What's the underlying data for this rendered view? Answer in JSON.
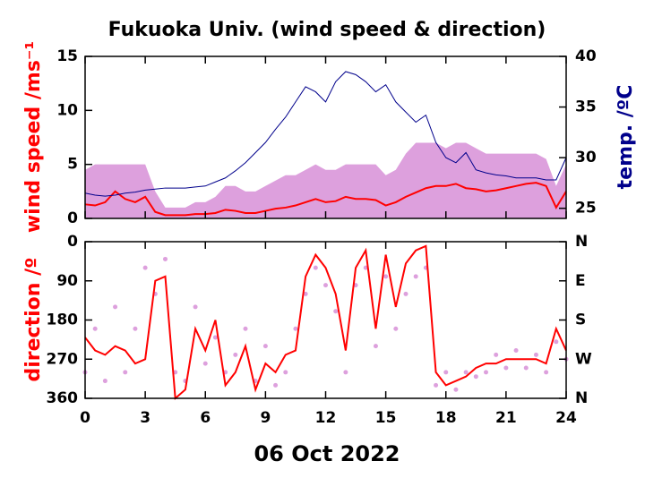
{
  "chart_data": [
    {
      "type": "line",
      "title": "Fukuoka Univ. (wind speed & direction)",
      "ylabel": "wind speed /ms⁻¹",
      "y2label": "temp. /ºC",
      "xlim": [
        0,
        24
      ],
      "xticks": [
        0,
        3,
        6,
        9,
        12,
        15,
        18,
        21,
        24
      ],
      "ylim": [
        0,
        15
      ],
      "yticks": [
        0,
        5,
        10,
        15
      ],
      "y2lim": [
        24,
        40
      ],
      "y2ticks": [
        25,
        30,
        35,
        40
      ],
      "x": [
        0,
        0.5,
        1,
        1.5,
        2,
        2.5,
        3,
        3.5,
        4,
        4.5,
        5,
        5.5,
        6,
        6.5,
        7,
        7.5,
        8,
        8.5,
        9,
        9.5,
        10,
        10.5,
        11,
        11.5,
        12,
        12.5,
        13,
        13.5,
        14,
        14.5,
        15,
        15.5,
        16,
        16.5,
        17,
        17.5,
        18,
        18.5,
        19,
        19.5,
        20,
        20.5,
        21,
        21.5,
        22,
        22.5,
        23,
        23.5,
        24
      ],
      "series": [
        {
          "style": "area",
          "color": "#dda0dd",
          "values": [
            4.5,
            5,
            5,
            5,
            5,
            5,
            5,
            2.5,
            1,
            1,
            1,
            1.5,
            1.5,
            2,
            3,
            3,
            2.5,
            2.5,
            3,
            3.5,
            4,
            4,
            4.5,
            5,
            4.5,
            4.5,
            5,
            5,
            5,
            5,
            4,
            4.5,
            6,
            7,
            7,
            7,
            6.5,
            7,
            7,
            6.5,
            6,
            6,
            6,
            6,
            6,
            6,
            5.5,
            3,
            5
          ]
        },
        {
          "style": "line",
          "color": "#ff0000",
          "values": [
            1.3,
            1.2,
            1.5,
            2.5,
            1.8,
            1.5,
            2.0,
            0.6,
            0.3,
            0.3,
            0.3,
            0.4,
            0.4,
            0.5,
            0.8,
            0.7,
            0.5,
            0.5,
            0.7,
            0.9,
            1.0,
            1.2,
            1.5,
            1.8,
            1.5,
            1.6,
            2.0,
            1.8,
            1.8,
            1.7,
            1.2,
            1.5,
            2.0,
            2.4,
            2.8,
            3.0,
            3.0,
            3.2,
            2.8,
            2.7,
            2.5,
            2.6,
            2.8,
            3.0,
            3.2,
            3.3,
            3.0,
            1.0,
            2.5
          ]
        },
        {
          "style": "line",
          "color": "#00008b",
          "axis": "y2",
          "values": [
            26.5,
            26.3,
            26.2,
            26.3,
            26.5,
            26.6,
            26.8,
            26.9,
            27,
            27,
            27,
            27.1,
            27.2,
            27.6,
            28,
            28.7,
            29.5,
            30.5,
            31.5,
            32.8,
            34,
            35.5,
            37,
            36.5,
            35.5,
            37.5,
            38.5,
            38.2,
            37.5,
            36.5,
            37.2,
            35.5,
            34.5,
            33.5,
            34.2,
            31.5,
            30,
            29.5,
            30.5,
            28.8,
            28.5,
            28.3,
            28.2,
            28,
            28,
            28,
            27.8,
            27.8,
            30
          ]
        }
      ]
    },
    {
      "type": "line",
      "ylabel": "direction /º",
      "xlabel": "06 Oct 2022",
      "xlim": [
        0,
        24
      ],
      "xticks": [
        0,
        3,
        6,
        9,
        12,
        15,
        18,
        21,
        24
      ],
      "ylim": [
        0,
        360
      ],
      "y_inverted": true,
      "yticks": [
        0,
        90,
        180,
        270,
        360
      ],
      "y2ticks": [
        {
          "value": 0,
          "label": "N"
        },
        {
          "value": 90,
          "label": "E"
        },
        {
          "value": 180,
          "label": "S"
        },
        {
          "value": 270,
          "label": "W"
        },
        {
          "value": 360,
          "label": "N"
        }
      ],
      "x": [
        0,
        0.5,
        1,
        1.5,
        2,
        2.5,
        3,
        3.5,
        4,
        4.5,
        5,
        5.5,
        6,
        6.5,
        7,
        7.5,
        8,
        8.5,
        9,
        9.5,
        10,
        10.5,
        11,
        11.5,
        12,
        12.5,
        13,
        13.5,
        14,
        14.5,
        15,
        15.5,
        16,
        16.5,
        17,
        17.5,
        18,
        18.5,
        19,
        19.5,
        20,
        20.5,
        21,
        21.5,
        22,
        22.5,
        23,
        23.5,
        24
      ],
      "series": [
        {
          "style": "points",
          "color": "#dda0dd",
          "values": [
            300,
            200,
            320,
            150,
            300,
            200,
            60,
            120,
            40,
            300,
            320,
            150,
            280,
            220,
            300,
            260,
            200,
            320,
            240,
            330,
            300,
            200,
            120,
            60,
            100,
            160,
            300,
            100,
            60,
            240,
            80,
            200,
            120,
            80,
            60,
            330,
            300,
            340,
            300,
            310,
            300,
            260,
            290,
            250,
            290,
            260,
            300,
            230,
            270
          ]
        },
        {
          "style": "line",
          "color": "#ff0000",
          "values": [
            220,
            250,
            260,
            240,
            250,
            280,
            270,
            90,
            80,
            360,
            340,
            200,
            250,
            180,
            330,
            300,
            240,
            340,
            280,
            300,
            260,
            250,
            80,
            30,
            60,
            120,
            250,
            60,
            20,
            200,
            30,
            150,
            50,
            20,
            10,
            300,
            330,
            320,
            310,
            290,
            280,
            280,
            270,
            270,
            270,
            270,
            280,
            200,
            250
          ]
        }
      ]
    }
  ]
}
